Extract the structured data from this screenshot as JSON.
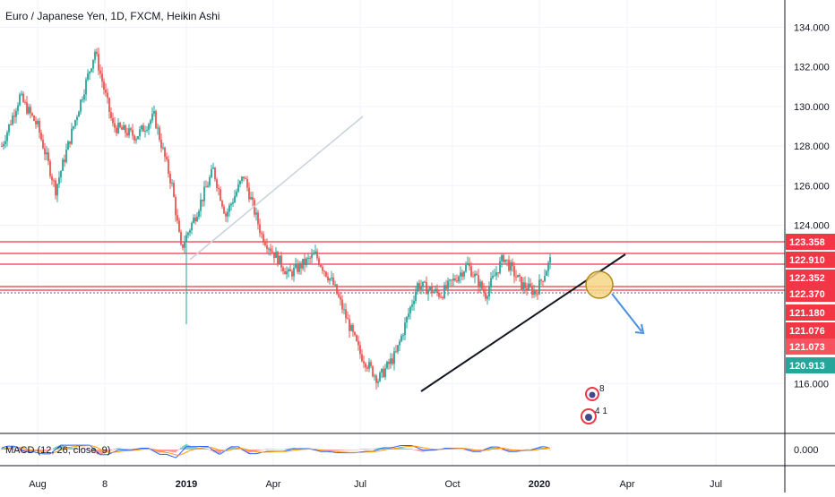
{
  "chart_data": {
    "type": "candlestick",
    "title": "Euro / Japanese Yen, 1D, FXCM, Heikin Ashi",
    "x_ticks": [
      {
        "label": "Aug",
        "bold": false
      },
      {
        "label": "8",
        "bold": false
      },
      {
        "label": "2019",
        "bold": true
      },
      {
        "label": "Apr",
        "bold": false
      },
      {
        "label": "Jul",
        "bold": false
      },
      {
        "label": "Oct",
        "bold": false
      },
      {
        "label": "2020",
        "bold": true
      },
      {
        "label": "Apr",
        "bold": false
      },
      {
        "label": "Jul",
        "bold": false
      }
    ],
    "y_ticks": [
      "134.000",
      "132.000",
      "130.000",
      "128.000",
      "126.000",
      "124.000",
      "116.000"
    ],
    "ylim": [
      115,
      135
    ],
    "price_tags": [
      {
        "value": 123.358,
        "label": "123.358",
        "color": "#f23645"
      },
      {
        "value": 122.91,
        "label": "122.910",
        "color": "#f23645"
      },
      {
        "value": 122.352,
        "label": "122.352",
        "color": "#f23645"
      },
      {
        "value": 122.37,
        "label": "122.370",
        "color": "#f23645"
      },
      {
        "value": 121.18,
        "label": "121.180",
        "color": "#f23645"
      },
      {
        "value": 121.076,
        "label": "121.076",
        "color": "#f23645"
      },
      {
        "value": 121.073,
        "label": "121.073",
        "color": "#f7525f"
      },
      {
        "value": 120.913,
        "label": "120.913",
        "color": "#26a69a"
      }
    ],
    "horizontal_levels": [
      123.358,
      122.91,
      122.352,
      121.4,
      121.1
    ],
    "waypoints": [
      [
        0,
        128.0
      ],
      [
        10,
        130.5
      ],
      [
        20,
        129.0
      ],
      [
        30,
        125.8
      ],
      [
        40,
        129.0
      ],
      [
        52,
        132.8
      ],
      [
        62,
        129.0
      ],
      [
        75,
        128.5
      ],
      [
        85,
        129.5
      ],
      [
        95,
        126.0
      ],
      [
        100,
        122.8
      ],
      [
        108,
        124.5
      ],
      [
        118,
        126.8
      ],
      [
        125,
        124.5
      ],
      [
        135,
        126.5
      ],
      [
        145,
        123.5
      ],
      [
        160,
        121.5
      ],
      [
        175,
        122.5
      ],
      [
        185,
        121.0
      ],
      [
        200,
        117.5
      ],
      [
        210,
        116.2
      ],
      [
        220,
        117.5
      ],
      [
        232,
        121.0
      ],
      [
        245,
        120.5
      ],
      [
        260,
        122.0
      ],
      [
        270,
        120.5
      ],
      [
        280,
        122.4
      ],
      [
        290,
        121.0
      ],
      [
        298,
        120.6
      ],
      [
        306,
        122.2
      ]
    ],
    "total_days": 307,
    "trendline_support": {
      "from": [
        210,
        116.3
      ],
      "to": [
        312,
        123.2
      ]
    },
    "trendline_gray": {
      "from": [
        100,
        122.9
      ],
      "to": [
        157,
        129.5
      ]
    },
    "macd": {
      "label": "MACD (12, 26, close, 9)",
      "ytick": "0.000"
    }
  },
  "colors": {
    "up": "#26a69a",
    "down": "#ef5350",
    "grid": "#f0f3fa",
    "level": "#f23645",
    "trend": "#131722",
    "gray": "#c8d0db",
    "circle_fill": "#f6d686",
    "circle_stroke": "#b08a1a",
    "arrow": "#4a90e2"
  }
}
